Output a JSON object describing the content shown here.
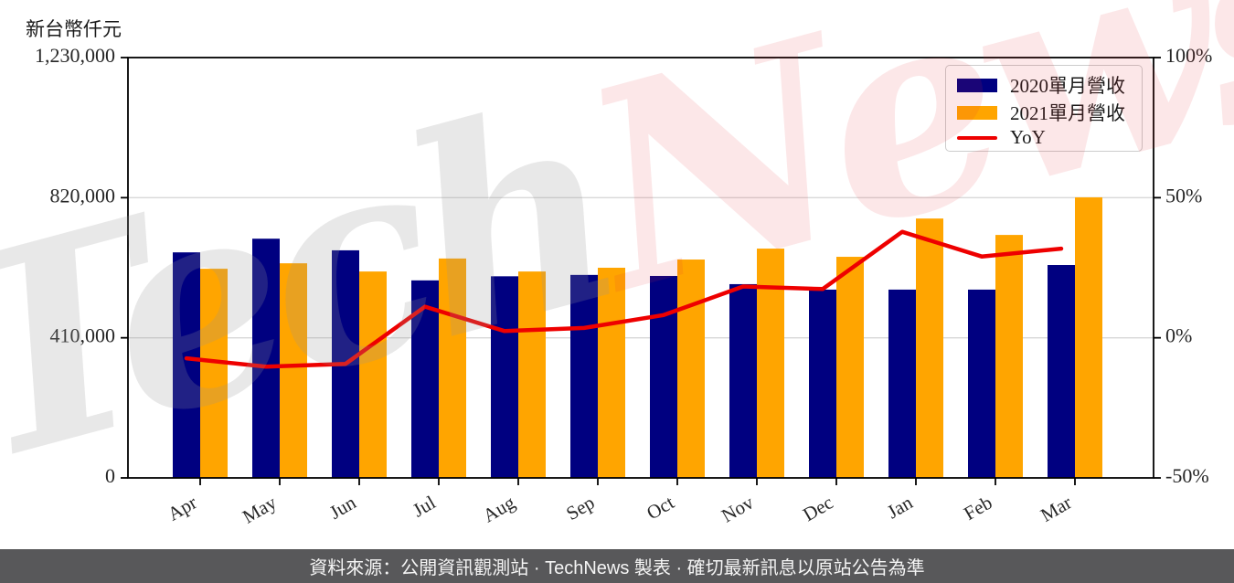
{
  "chart_data": {
    "type": "bar",
    "subtype": "grouped-bars-with-line-overlay",
    "unit_label": "新台幣仟元",
    "categories": [
      "Apr",
      "May",
      "Jun",
      "Jul",
      "Aug",
      "Sep",
      "Oct",
      "Nov",
      "Dec",
      "Jan",
      "Feb",
      "Mar"
    ],
    "series": [
      {
        "name": "2020單月營收",
        "type": "bar",
        "axis": "left",
        "color": "#000080",
        "values": [
          660000,
          700000,
          666000,
          578000,
          590000,
          594000,
          591000,
          567000,
          551000,
          551000,
          551000,
          623000
        ]
      },
      {
        "name": "2021單月營收",
        "type": "bar",
        "axis": "left",
        "color": "#FFA500",
        "values": [
          612000,
          628000,
          604000,
          642000,
          604000,
          615000,
          639000,
          671000,
          647000,
          759000,
          711000,
          821000
        ]
      },
      {
        "name": "YoY",
        "type": "line",
        "axis": "right",
        "color": "#EE0000",
        "values": [
          -7.3,
          -10.3,
          -9.3,
          11.1,
          2.4,
          3.5,
          8.1,
          18.3,
          17.4,
          37.8,
          29.0,
          31.8
        ]
      }
    ],
    "left_axis": {
      "tick_labels": [
        "0",
        "410,000",
        "820,000",
        "1,230,000"
      ],
      "tick_values": [
        0,
        410000,
        820000,
        1230000
      ],
      "range": [
        0,
        1230000
      ]
    },
    "right_axis": {
      "tick_labels": [
        "-50%",
        "0%",
        "50%",
        "100%"
      ],
      "tick_values": [
        -50,
        0,
        50,
        100
      ],
      "range": [
        -50,
        100
      ]
    },
    "grid": true,
    "legend_position": "top-right"
  },
  "watermark": {
    "part1": "Tech",
    "part2": "News"
  },
  "footer": {
    "text": "資料來源：公開資訊觀測站 · TechNews 製表 · 確切最新訊息以原站公告為準"
  }
}
